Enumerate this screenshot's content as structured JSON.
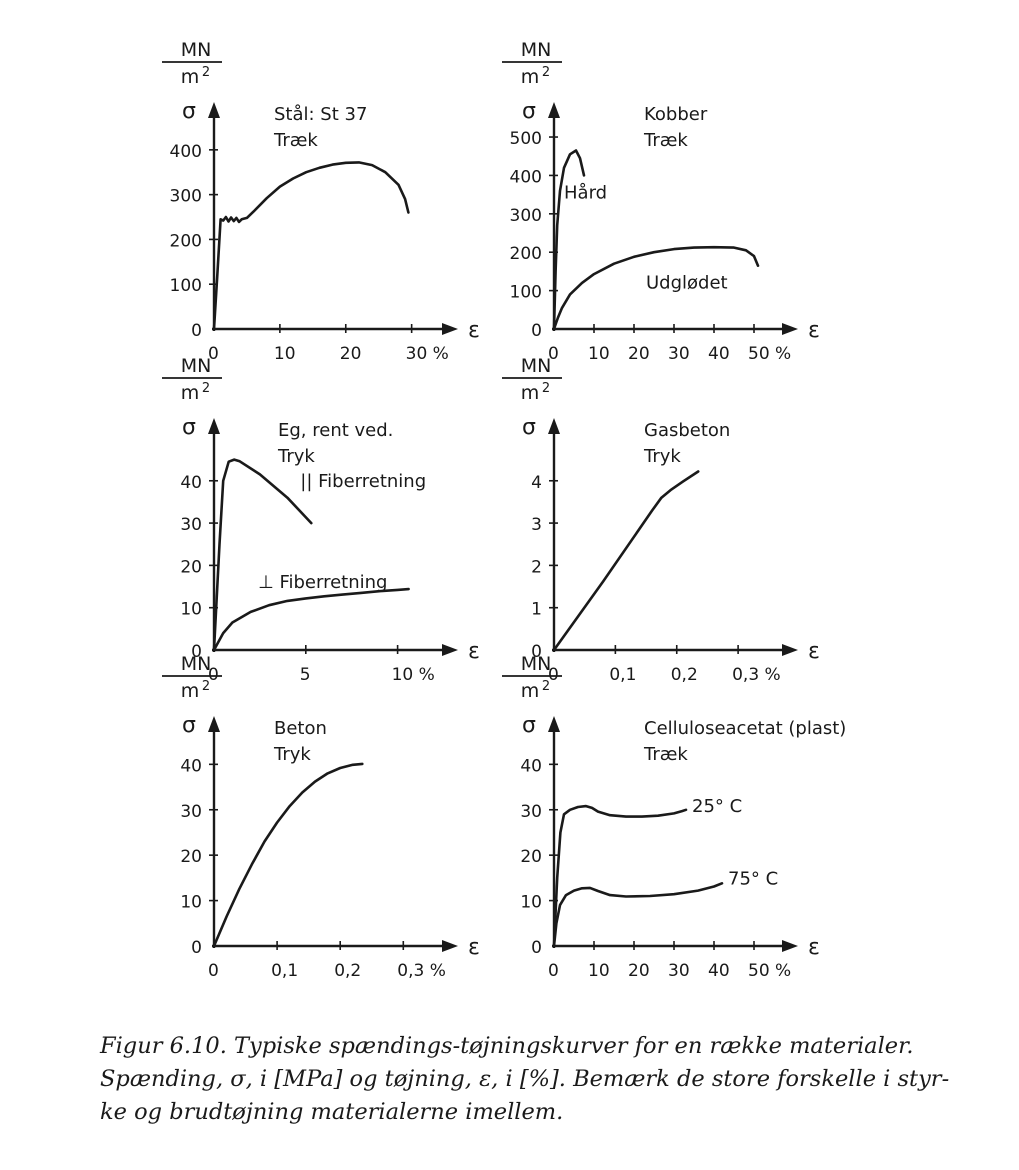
{
  "chart_data": [
    {
      "type": "line",
      "title": "Stål: St 37",
      "subtitle": "Træk",
      "units_num": "MN",
      "units_den": "m",
      "units_exp": "2",
      "ylabel": "σ",
      "xlabel": "ε",
      "x_ticks": [
        0,
        10,
        20,
        30
      ],
      "x_tick_labels": [
        "0",
        "10",
        "20",
        "30 %"
      ],
      "y_ticks": [
        0,
        100,
        200,
        300,
        400
      ],
      "y_tick_labels": [
        "0",
        "100",
        "200",
        "300",
        "400"
      ],
      "xlim": [
        0,
        34
      ],
      "ylim": [
        0,
        480
      ],
      "series": [
        {
          "name": "",
          "points": [
            [
              0,
              0
            ],
            [
              0.5,
              120
            ],
            [
              1,
              245
            ],
            [
              1.4,
              242
            ],
            [
              1.8,
              250
            ],
            [
              2.2,
              240
            ],
            [
              2.6,
              249
            ],
            [
              3,
              241
            ],
            [
              3.4,
              248
            ],
            [
              3.8,
              239
            ],
            [
              4.2,
              245
            ],
            [
              5,
              248
            ],
            [
              6,
              262
            ],
            [
              8,
              292
            ],
            [
              10,
              318
            ],
            [
              12,
              336
            ],
            [
              14,
              350
            ],
            [
              16,
              360
            ],
            [
              18,
              367
            ],
            [
              20,
              371
            ],
            [
              22,
              372
            ],
            [
              24,
              366
            ],
            [
              26,
              350
            ],
            [
              28,
              322
            ],
            [
              29,
              290
            ],
            [
              29.5,
              260
            ]
          ]
        }
      ],
      "annotations": []
    },
    {
      "type": "line",
      "title": "Kobber",
      "subtitle": "Træk",
      "units_num": "MN",
      "units_den": "m",
      "units_exp": "2",
      "ylabel": "σ",
      "xlabel": "ε",
      "x_ticks": [
        0,
        10,
        20,
        30,
        40,
        50
      ],
      "x_tick_labels": [
        "0",
        "10",
        "20",
        "30",
        "40",
        "50 %"
      ],
      "y_ticks": [
        0,
        100,
        200,
        300,
        400,
        500
      ],
      "y_tick_labels": [
        "0",
        "100",
        "200",
        "300",
        "400",
        "500"
      ],
      "xlim": [
        0,
        56
      ],
      "ylim": [
        0,
        560
      ],
      "series": [
        {
          "name": "Hård",
          "points": [
            [
              0,
              0
            ],
            [
              0.4,
              150
            ],
            [
              0.8,
              270
            ],
            [
              1.5,
              360
            ],
            [
              2.5,
              420
            ],
            [
              4,
              455
            ],
            [
              5.5,
              465
            ],
            [
              6.5,
              445
            ],
            [
              7.5,
              400
            ]
          ]
        },
        {
          "name": "Udglødet",
          "points": [
            [
              0,
              0
            ],
            [
              1,
              30
            ],
            [
              2,
              55
            ],
            [
              4,
              90
            ],
            [
              7,
              120
            ],
            [
              10,
              143
            ],
            [
              15,
              170
            ],
            [
              20,
              188
            ],
            [
              25,
              200
            ],
            [
              30,
              208
            ],
            [
              35,
              212
            ],
            [
              40,
              213
            ],
            [
              45,
              212
            ],
            [
              48,
              205
            ],
            [
              50,
              190
            ],
            [
              51,
              165
            ]
          ]
        }
      ],
      "annotations": [
        {
          "text": "Hård",
          "x": 2.5,
          "y": 340
        },
        {
          "text": "Udglødet",
          "x": 23,
          "y": 105
        }
      ]
    },
    {
      "type": "line",
      "title": "Eg, rent ved.",
      "subtitle": "Tryk",
      "units_num": "MN",
      "units_den": "m",
      "units_exp": "2",
      "ylabel": "σ",
      "xlabel": "ε",
      "x_ticks": [
        0,
        5,
        10
      ],
      "x_tick_labels": [
        "0",
        "5",
        "10 %"
      ],
      "y_ticks": [
        0,
        10,
        20,
        30,
        40
      ],
      "y_tick_labels": [
        "0",
        "10",
        "20",
        "30",
        "40"
      ],
      "xlim": [
        0,
        12.2
      ],
      "ylim": [
        0,
        52
      ],
      "series": [
        {
          "name": "|| Fiberretning",
          "points": [
            [
              0,
              0
            ],
            [
              0.3,
              25
            ],
            [
              0.5,
              40
            ],
            [
              0.8,
              44.5
            ],
            [
              1.1,
              45
            ],
            [
              1.4,
              44.6
            ],
            [
              2.5,
              41.5
            ],
            [
              4,
              36
            ],
            [
              5.3,
              30
            ]
          ]
        },
        {
          "name": "⊥ Fiberretning",
          "points": [
            [
              0,
              0
            ],
            [
              0.5,
              4
            ],
            [
              1,
              6.5
            ],
            [
              2,
              9
            ],
            [
              3,
              10.6
            ],
            [
              4,
              11.6
            ],
            [
              5,
              12.2
            ],
            [
              6,
              12.7
            ],
            [
              7,
              13.1
            ],
            [
              8,
              13.5
            ],
            [
              9,
              13.9
            ],
            [
              10,
              14.2
            ],
            [
              10.6,
              14.4
            ]
          ]
        }
      ],
      "annotations": [
        {
          "text": "|| Fiberretning",
          "x": 4.7,
          "y": 38.5
        },
        {
          "text": "⊥ Fiberretning",
          "x": 2.4,
          "y": 14.6
        }
      ]
    },
    {
      "type": "line",
      "title": "Gasbeton",
      "subtitle": "Tryk",
      "units_num": "MN",
      "units_den": "m",
      "units_exp": "2",
      "ylabel": "σ",
      "xlabel": "ε",
      "x_ticks": [
        0,
        0.1,
        0.2,
        0.3
      ],
      "x_tick_labels": [
        "0",
        "0,1",
        "0,2",
        "0,3 %"
      ],
      "y_ticks": [
        0,
        1,
        2,
        3,
        4
      ],
      "y_tick_labels": [
        "0",
        "1",
        "2",
        "3",
        "4"
      ],
      "xlim": [
        0,
        0.365
      ],
      "ylim": [
        0,
        5.2
      ],
      "series": [
        {
          "name": "",
          "points": [
            [
              0,
              0
            ],
            [
              0.08,
              1.62
            ],
            [
              0.16,
              3.3
            ],
            [
              0.175,
              3.6
            ],
            [
              0.19,
              3.78
            ],
            [
              0.21,
              3.98
            ],
            [
              0.235,
              4.22
            ]
          ]
        }
      ],
      "annotations": []
    },
    {
      "type": "line",
      "title": "Beton",
      "subtitle": "Tryk",
      "units_num": "MN",
      "units_den": "m",
      "units_exp": "2",
      "ylabel": "σ",
      "xlabel": "ε",
      "x_ticks": [
        0,
        0.1,
        0.2,
        0.3
      ],
      "x_tick_labels": [
        "0",
        "0,1",
        "0,2",
        "0,3 %"
      ],
      "y_ticks": [
        0,
        10,
        20,
        30,
        40
      ],
      "y_tick_labels": [
        "0",
        "10",
        "20",
        "30",
        "40"
      ],
      "xlim": [
        0,
        0.355
      ],
      "ylim": [
        0,
        48
      ],
      "series": [
        {
          "name": "",
          "points": [
            [
              0,
              0
            ],
            [
              0.02,
              6.5
            ],
            [
              0.04,
              12.5
            ],
            [
              0.06,
              18
            ],
            [
              0.08,
              23
            ],
            [
              0.1,
              27.2
            ],
            [
              0.12,
              30.8
            ],
            [
              0.14,
              33.8
            ],
            [
              0.16,
              36.2
            ],
            [
              0.18,
              38
            ],
            [
              0.2,
              39.2
            ],
            [
              0.22,
              39.9
            ],
            [
              0.235,
              40.1
            ]
          ]
        }
      ],
      "annotations": []
    },
    {
      "type": "line",
      "title": "Celluloseacetat (plast)",
      "subtitle": "Træk",
      "units_num": "MN",
      "units_den": "m",
      "units_exp": "2",
      "ylabel": "σ",
      "xlabel": "ε",
      "x_ticks": [
        0,
        10,
        20,
        30,
        40,
        50
      ],
      "x_tick_labels": [
        "0",
        "10",
        "20",
        "30",
        "40",
        "50 %"
      ],
      "y_ticks": [
        0,
        10,
        20,
        30,
        40
      ],
      "y_tick_labels": [
        "0",
        "10",
        "20",
        "30",
        "40"
      ],
      "xlim": [
        0,
        56
      ],
      "ylim": [
        0,
        48
      ],
      "series": [
        {
          "name": "25° C",
          "points": [
            [
              0,
              0
            ],
            [
              0.8,
              15
            ],
            [
              1.6,
              25
            ],
            [
              2.5,
              29
            ],
            [
              4,
              30
            ],
            [
              6,
              30.6
            ],
            [
              8,
              30.8
            ],
            [
              9.5,
              30.4
            ],
            [
              11,
              29.6
            ],
            [
              14,
              28.8
            ],
            [
              18,
              28.5
            ],
            [
              22,
              28.5
            ],
            [
              26,
              28.7
            ],
            [
              30,
              29.2
            ],
            [
              32,
              29.7
            ],
            [
              33,
              30
            ]
          ]
        },
        {
          "name": "75° C",
          "points": [
            [
              0,
              0
            ],
            [
              0.6,
              5
            ],
            [
              1.5,
              9
            ],
            [
              3,
              11.2
            ],
            [
              5,
              12.2
            ],
            [
              7,
              12.7
            ],
            [
              9,
              12.8
            ],
            [
              11,
              12.1
            ],
            [
              14,
              11.2
            ],
            [
              18,
              10.9
            ],
            [
              24,
              11
            ],
            [
              30,
              11.4
            ],
            [
              36,
              12.2
            ],
            [
              40,
              13.1
            ],
            [
              42,
              13.8
            ]
          ]
        }
      ],
      "annotations": [
        {
          "text": "25° C",
          "x": 34.5,
          "y": 29.5
        },
        {
          "text": "75° C",
          "x": 43.5,
          "y": 13.5
        }
      ]
    }
  ],
  "caption": {
    "lines": [
      "Figur 6.10. Typiske spændings-tøjningskurver for en række materialer.",
      "Spænding, σ, i [MPa] og tøjning, ε, i [%]. Bemærk de store forskelle i styr-",
      "ke og brudtøjning materialerne imellem."
    ]
  }
}
